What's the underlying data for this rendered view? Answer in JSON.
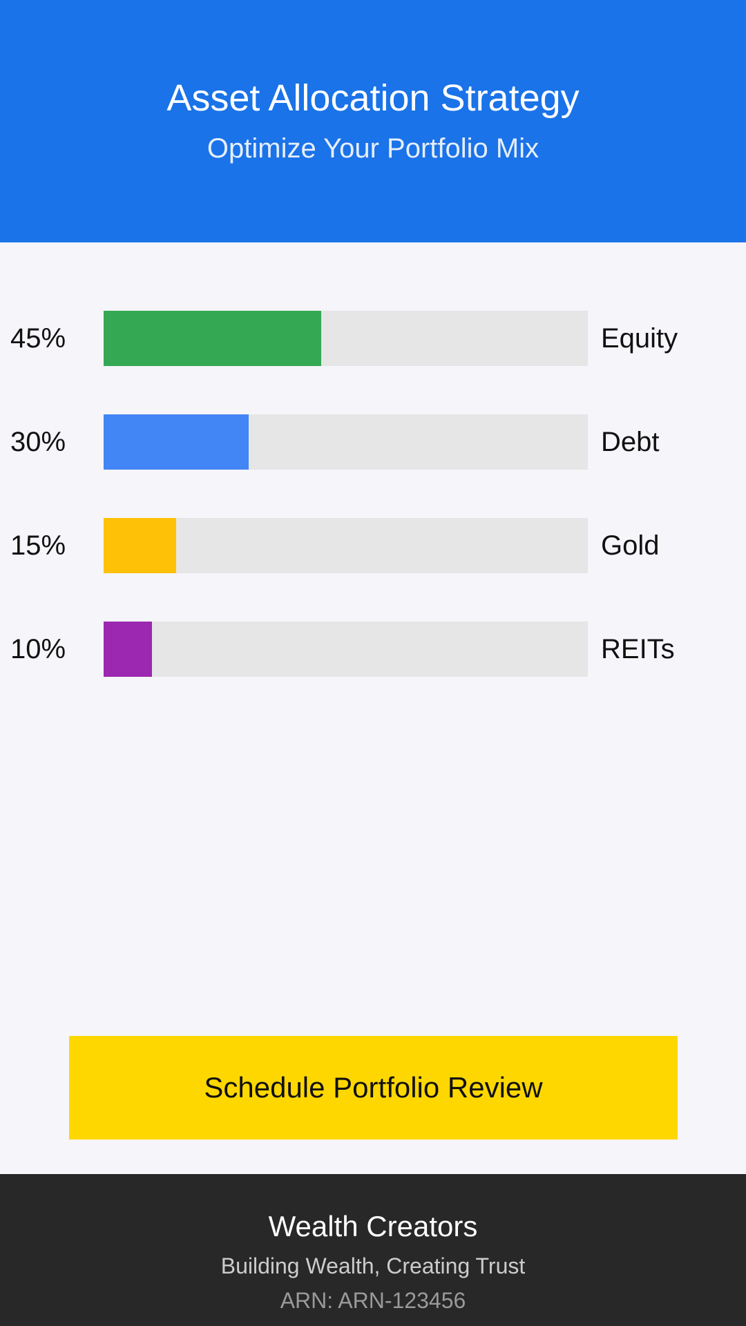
{
  "header": {
    "title": "Asset Allocation Strategy",
    "subtitle": "Optimize Your Portfolio Mix"
  },
  "chart_data": {
    "type": "bar",
    "orientation": "horizontal",
    "categories": [
      "Equity",
      "Debt",
      "Gold",
      "REITs"
    ],
    "values": [
      45,
      30,
      15,
      10
    ],
    "value_labels": [
      "45%",
      "30%",
      "15%",
      "10%"
    ],
    "colors": [
      "#34A853",
      "#4285F4",
      "#FFC107",
      "#9C27B0"
    ],
    "track_color": "#E6E6E6",
    "xlim": [
      0,
      100
    ],
    "grid": false,
    "legend": "none",
    "title": "",
    "xlabel": "",
    "ylabel": ""
  },
  "cta": {
    "label": "Schedule Portfolio Review"
  },
  "footer": {
    "brand": "Wealth Creators",
    "tagline": "Building Wealth, Creating Trust",
    "arn": "ARN: ARN-123456"
  },
  "colors": {
    "header_bg": "#1A73E8",
    "page_bg": "#F5F5FA",
    "cta_bg": "#FFD700",
    "footer_bg": "#282828"
  }
}
